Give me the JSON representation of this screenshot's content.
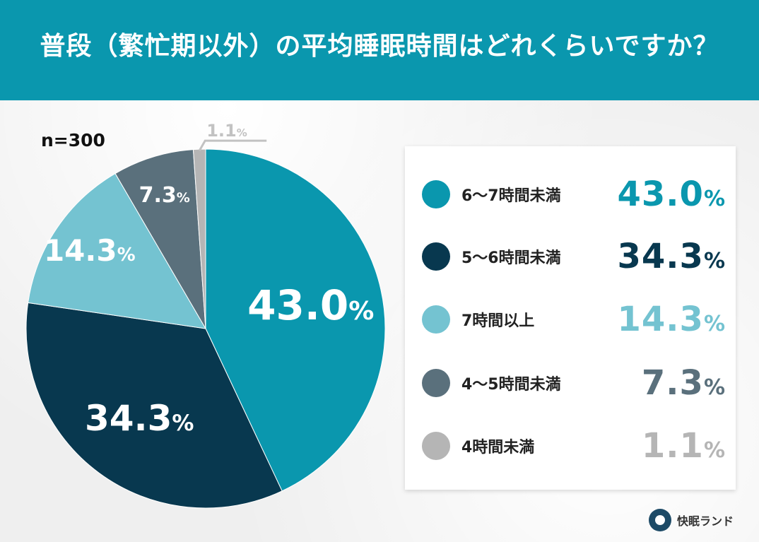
{
  "header": {
    "title": "普段（繁忙期以外）の平均睡眠時間はどれくらいですか？"
  },
  "sample_size": "n=300",
  "brand": {
    "name": "快眠ランド"
  },
  "colors": {
    "header_bg": "#0a97ae",
    "slice_1": "#0a97ae",
    "slice_2": "#08384f",
    "slice_3": "#74c3d1",
    "slice_4": "#5a707c",
    "slice_5": "#b5b5b5"
  },
  "chart_data": {
    "type": "pie",
    "title": "普段（繁忙期以外）の平均睡眠時間はどれくらいですか？",
    "categories": [
      "6〜7時間未満",
      "5〜6時間未満",
      "7時間以上",
      "4〜5時間未満",
      "4時間未満"
    ],
    "values": [
      43.0,
      34.3,
      14.3,
      7.3,
      1.1
    ],
    "labels": [
      "43.0",
      "34.3",
      "14.3",
      "7.3",
      "1.1"
    ],
    "unit": "%",
    "legend_placement": "right"
  }
}
